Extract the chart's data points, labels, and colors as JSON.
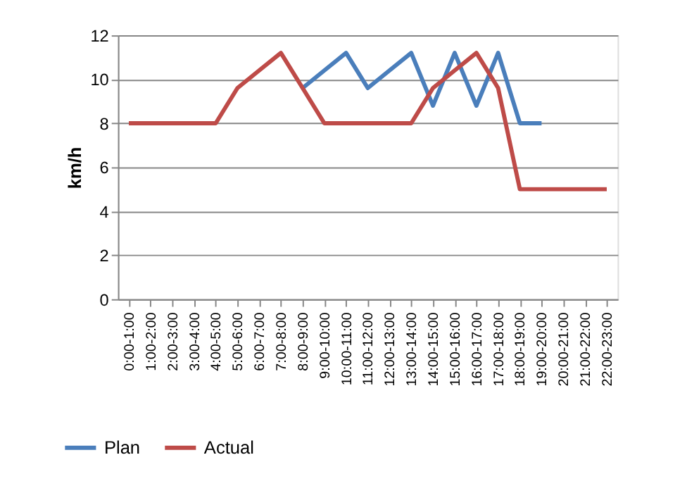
{
  "chart_data": {
    "type": "line",
    "ylabel": "km/h",
    "categories": [
      "0:00-1:00",
      "1:00-2:00",
      "2:00-3:00",
      "3:00-4:00",
      "4:00-5:00",
      "5:00-6:00",
      "6:00-7:00",
      "7:00-8:00",
      "8:00-9:00",
      "9:00-10:00",
      "10:00-11:00",
      "11:00-12:00",
      "12:00-13:00",
      "13:00-14:00",
      "14:00-15:00",
      "15:00-16:00",
      "16:00-17:00",
      "17:00-18:00",
      "18:00-19:00",
      "19:00-20:00",
      "20:00-21:00",
      "21:00-22:00",
      "22:00-23:00"
    ],
    "series": [
      {
        "name": "Plan",
        "color": "#4a7ebb",
        "values": [
          null,
          null,
          null,
          null,
          null,
          null,
          null,
          null,
          9.6,
          10.4,
          11.2,
          9.6,
          10.4,
          11.2,
          8.8,
          11.2,
          8.8,
          11.2,
          8,
          8,
          null,
          null,
          null
        ]
      },
      {
        "name": "Actual",
        "color": "#be4b48",
        "values": [
          8,
          8,
          8,
          8,
          8,
          9.6,
          10.4,
          11.2,
          9.6,
          8,
          8,
          8,
          8,
          8,
          9.6,
          10.4,
          11.2,
          9.6,
          5,
          5,
          5,
          5,
          5
        ]
      }
    ],
    "ylim": [
      0,
      12
    ],
    "yticks": [
      0,
      2,
      4,
      6,
      8,
      10,
      12
    ],
    "grid": "y",
    "legend": "bottom left",
    "marker": "none",
    "line_style": "solid"
  }
}
